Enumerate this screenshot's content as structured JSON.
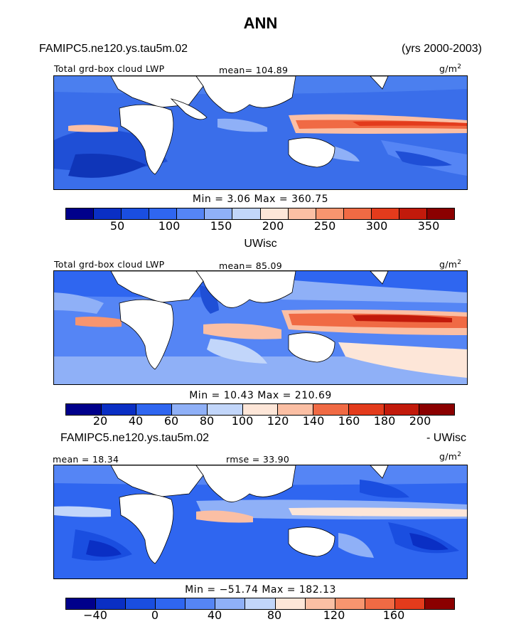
{
  "header": {
    "season": "ANN",
    "case_name": "FAMIPC5.ne120.ys.tau5m.02",
    "years": "(yrs 2000-2003)"
  },
  "panels": [
    {
      "id": "top",
      "label": "",
      "field_label": "Total grd-box cloud LWP",
      "stat_label": "mean= 104.89",
      "units": "g/m",
      "units_exp": "2",
      "minmax": "Min =    3.06 Max = 360.75",
      "ticks": [
        "50",
        "100",
        "150",
        "200",
        "250",
        "300",
        "350"
      ]
    },
    {
      "id": "middle",
      "label": "UWisc",
      "field_label": "Total grd-box cloud LWP",
      "stat_label": "mean=  85.09",
      "units": "g/m",
      "units_exp": "2",
      "minmax": "Min =  10.43 Max = 210.69",
      "ticks": [
        "20",
        "40",
        "60",
        "80",
        "100",
        "120",
        "140",
        "160",
        "180",
        "200"
      ]
    },
    {
      "id": "bottom",
      "label_left": "FAMIPC5.ne120.ys.tau5m.02",
      "label_right": "- UWisc",
      "stat_left": "mean =  18.34",
      "stat_mid": "rmse =  33.90",
      "units": "g/m",
      "units_exp": "2",
      "minmax": "Min = −51.74 Max = 182.13",
      "ticks": [
        "−40",
        "0",
        "40",
        "80",
        "120",
        "160"
      ]
    }
  ],
  "colors": {
    "scale_top": [
      "#00008b",
      "#0a2fc4",
      "#1a4ee0",
      "#2f66f0",
      "#5585f5",
      "#8fb0f7",
      "#c2d6fa",
      "#fde6d8",
      "#fbbfa4",
      "#f7956f",
      "#f06a44",
      "#e33b1c",
      "#c21a0b",
      "#8b0000"
    ],
    "scale_mid": [
      "#00008b",
      "#0a2fc4",
      "#1a4ee0",
      "#2f66f0",
      "#5585f5",
      "#8fb0f7",
      "#c2d6fa",
      "#fde6d8",
      "#fbbfa4",
      "#f7956f",
      "#f06a44",
      "#e33b1c",
      "#c21a0b",
      "#8b0000"
    ],
    "scale_bot": [
      "#00008b",
      "#0a2fc4",
      "#1a4ee0",
      "#2f66f0",
      "#5585f5",
      "#8fb0f7",
      "#c2d6fa",
      "#fde6d8",
      "#fbbfa4",
      "#f7956f",
      "#f06a44",
      "#e33b1c",
      "#c21a0b",
      "#8b0000"
    ]
  }
}
